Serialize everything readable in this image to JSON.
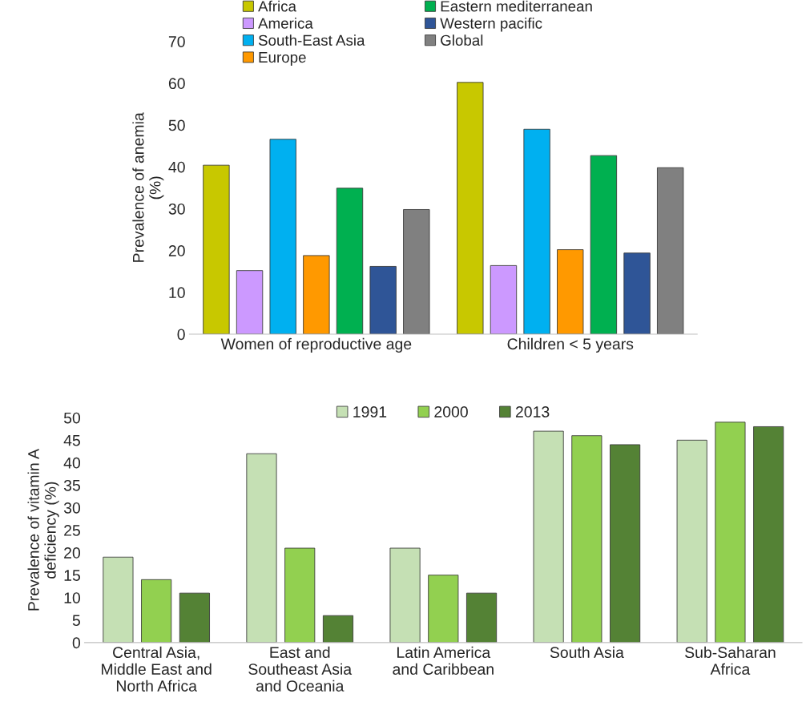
{
  "chart_data": [
    {
      "type": "bar",
      "categories": [
        "Women of reproductive age",
        "Children < 5 years"
      ],
      "ylabel": "Prevalence of anemia\n(%)",
      "ylim": [
        0,
        70
      ],
      "yticks": [
        0,
        10,
        20,
        30,
        40,
        50,
        60,
        70
      ],
      "legend": "top",
      "grid": false,
      "series": [
        {
          "name": "Africa",
          "color": "#c8c800",
          "values": [
            40.4,
            60.2
          ]
        },
        {
          "name": "America",
          "color": "#cc99ff",
          "values": [
            15.2,
            16.4
          ]
        },
        {
          "name": "South-East Asia",
          "color": "#00b0f0",
          "values": [
            46.6,
            49.0
          ]
        },
        {
          "name": "Europe",
          "color": "#ff9900",
          "values": [
            18.8,
            20.2
          ]
        },
        {
          "name": "Eastern mediterranean",
          "color": "#00b050",
          "values": [
            34.9,
            42.7
          ]
        },
        {
          "name": "Western pacific",
          "color": "#2f5597",
          "values": [
            16.2,
            19.4
          ]
        },
        {
          "name": "Global",
          "color": "#808080",
          "values": [
            29.8,
            39.8
          ]
        }
      ]
    },
    {
      "type": "bar",
      "categories": [
        "Central Asia,\nMiddle East and\nNorth Africa",
        "East and\nSoutheast Asia\nand Oceania",
        "Latin America\nand Caribbean",
        "South Asia",
        "Sub-Saharan\nAfrica"
      ],
      "ylabel": "Prevalence of vitamin A\ndeficiency (%)",
      "ylim": [
        0,
        50
      ],
      "yticks": [
        0,
        5,
        10,
        15,
        20,
        25,
        30,
        35,
        40,
        45,
        50
      ],
      "legend": "top",
      "grid": false,
      "series": [
        {
          "name": "1991",
          "color": "#c5e0b4",
          "values": [
            19,
            42,
            21,
            47,
            45
          ]
        },
        {
          "name": "2000",
          "color": "#92d050",
          "values": [
            14,
            21,
            15,
            46,
            49
          ]
        },
        {
          "name": "2013",
          "color": "#548235",
          "values": [
            11,
            6,
            11,
            44,
            48
          ]
        }
      ]
    }
  ]
}
